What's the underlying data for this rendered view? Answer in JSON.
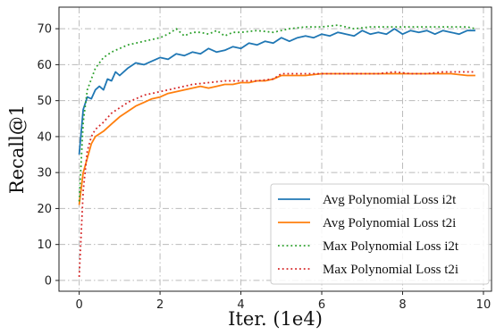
{
  "chart_data": {
    "type": "line",
    "xlabel": "Iter. (1e4)",
    "ylabel": "Recall@1",
    "xlim": [
      -0.5,
      10.2
    ],
    "ylim": [
      -3,
      76
    ],
    "xticks": [
      0,
      2,
      4,
      6,
      8,
      10
    ],
    "yticks": [
      0,
      10,
      20,
      30,
      40,
      50,
      60,
      70
    ],
    "grid": true,
    "grid_style": "dash-dot",
    "legend_position": "lower-right",
    "series": [
      {
        "name": "Avg Polynomial Loss i2t",
        "color": "#1f77b4",
        "style": "solid",
        "x": [
          0,
          0.1,
          0.2,
          0.3,
          0.4,
          0.5,
          0.6,
          0.7,
          0.8,
          0.9,
          1.0,
          1.2,
          1.4,
          1.6,
          1.8,
          2.0,
          2.2,
          2.4,
          2.6,
          2.8,
          3.0,
          3.2,
          3.4,
          3.6,
          3.8,
          4.0,
          4.2,
          4.4,
          4.6,
          4.8,
          5.0,
          5.2,
          5.4,
          5.6,
          5.8,
          6.0,
          6.2,
          6.4,
          6.6,
          6.8,
          7.0,
          7.2,
          7.4,
          7.6,
          7.8,
          8.0,
          8.2,
          8.4,
          8.6,
          8.8,
          9.0,
          9.2,
          9.4,
          9.6,
          9.8
        ],
        "y": [
          35,
          47.5,
          51,
          50.5,
          53,
          54,
          53,
          56,
          55.5,
          58,
          57,
          59,
          60.5,
          60,
          61,
          62,
          61.5,
          63,
          62.5,
          63.5,
          63,
          64.5,
          63.5,
          64,
          65,
          64.5,
          66,
          65.5,
          66.5,
          66,
          67.5,
          66.5,
          67.5,
          68,
          67.5,
          68.5,
          68,
          69,
          68.5,
          68,
          69.5,
          68.5,
          69,
          68.5,
          70,
          68.5,
          69.5,
          69,
          69.5,
          68.5,
          69.5,
          69,
          68.5,
          69.5,
          69.5
        ]
      },
      {
        "name": "Avg Polynomial Loss t2i",
        "color": "#ff7f0e",
        "style": "solid",
        "x": [
          0,
          0.1,
          0.2,
          0.3,
          0.4,
          0.6,
          0.8,
          1.0,
          1.2,
          1.4,
          1.6,
          1.8,
          2.0,
          2.2,
          2.4,
          2.6,
          2.8,
          3.0,
          3.2,
          3.4,
          3.6,
          3.8,
          4.0,
          4.2,
          4.4,
          4.6,
          4.8,
          5.0,
          5.2,
          5.6,
          6.0,
          6.4,
          6.8,
          7.2,
          7.6,
          8.0,
          8.4,
          8.8,
          9.2,
          9.6,
          9.8
        ],
        "y": [
          21,
          30,
          34,
          38,
          40,
          41.5,
          43.5,
          45.5,
          47,
          48.5,
          49.5,
          50.5,
          51,
          52,
          52.5,
          53,
          53.5,
          54,
          53.5,
          54,
          54.5,
          54.5,
          55,
          55,
          55.5,
          55.5,
          56,
          57,
          57,
          57,
          57.5,
          57.5,
          57.5,
          57.5,
          57.5,
          57.5,
          57.5,
          57.5,
          57.5,
          57,
          57
        ]
      },
      {
        "name": "Max Polynomial Loss i2t",
        "color": "#2ca02c",
        "style": "dotted",
        "x": [
          0,
          0.1,
          0.2,
          0.3,
          0.4,
          0.6,
          0.8,
          1.0,
          1.2,
          1.4,
          1.6,
          1.8,
          2.0,
          2.2,
          2.4,
          2.6,
          2.8,
          3.0,
          3.2,
          3.4,
          3.6,
          3.8,
          4.0,
          4.4,
          4.8,
          5.2,
          5.6,
          6.0,
          6.4,
          6.8,
          7.2,
          7.6,
          8.0,
          8.4,
          8.8,
          9.2,
          9.6,
          9.8
        ],
        "y": [
          22,
          44,
          53,
          56,
          59,
          62,
          63.5,
          64.5,
          65.5,
          66,
          66.5,
          67,
          67.5,
          68.5,
          70,
          68,
          69,
          69,
          68.5,
          69.5,
          68,
          69,
          69,
          69.5,
          69,
          70,
          70.5,
          70.5,
          71,
          70,
          70.5,
          70.5,
          70.5,
          70.5,
          70.5,
          70.5,
          70.5,
          70
        ]
      },
      {
        "name": "Max Polynomial Loss t2i",
        "color": "#d62728",
        "style": "dotted",
        "x": [
          0,
          0.1,
          0.2,
          0.3,
          0.4,
          0.6,
          0.8,
          1.0,
          1.2,
          1.4,
          1.6,
          1.8,
          2.0,
          2.4,
          2.8,
          3.2,
          3.6,
          4.0,
          4.4,
          4.8,
          5.0,
          5.4,
          5.8,
          6.2,
          6.6,
          7.0,
          7.4,
          7.8,
          8.2,
          8.6,
          9.0,
          9.4,
          9.8
        ],
        "y": [
          1,
          25,
          36,
          40,
          42,
          44,
          46.5,
          48,
          49.5,
          50.5,
          51.5,
          52,
          52.5,
          53.5,
          54.5,
          55,
          55.5,
          55.5,
          55.5,
          56,
          57.5,
          57.5,
          57.5,
          57.5,
          57.5,
          57.5,
          57.5,
          58,
          57.5,
          57.5,
          58,
          58,
          58
        ]
      }
    ]
  }
}
